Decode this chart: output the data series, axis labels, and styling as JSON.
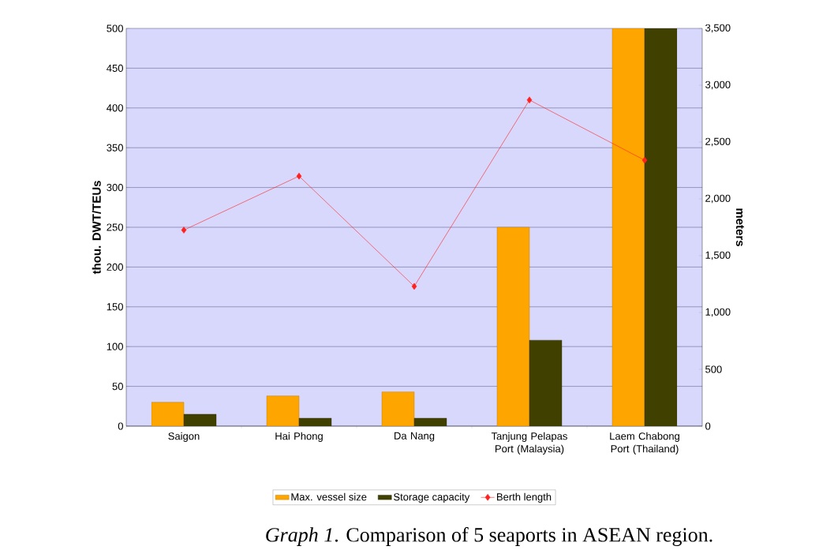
{
  "chart_data": {
    "type": "bar",
    "categories": [
      "Saigon",
      "Hai Phong",
      "Da Nang",
      "Tanjung Pelapas Port (Malaysia)",
      "Laem Chabong Port (Thailand)"
    ],
    "series": [
      {
        "name": "Max. vessel size",
        "color": "#ffa500",
        "values": [
          30,
          38,
          43,
          250,
          500
        ]
      },
      {
        "name": "Storage capacity",
        "color": "#404000",
        "values": [
          15,
          10,
          10,
          108,
          500
        ]
      },
      {
        "name": "Berth length",
        "type": "line",
        "axis": "y2",
        "marker": "diamond",
        "color": "#ff2020",
        "values": [
          1725,
          2200,
          1230,
          2870,
          2340
        ]
      }
    ],
    "ylim": [
      0,
      500
    ],
    "yticks": [
      0,
      50,
      100,
      150,
      200,
      250,
      300,
      350,
      400,
      450,
      500
    ],
    "y2lim": [
      0,
      3500
    ],
    "y2ticks": [
      0,
      500,
      {
        "value": 1000,
        "label": "1,000"
      },
      {
        "value": 1500,
        "label": "1,500"
      },
      {
        "value": 2000,
        "label": "2,000"
      },
      {
        "value": 2500,
        "label": "2,500"
      },
      {
        "value": 3000,
        "label": "3,000"
      },
      {
        "value": 3500,
        "label": "3,500"
      }
    ],
    "ylabel": "thou. DWT/TEUs",
    "y2label": "meters",
    "grid": "y",
    "legend": "bottom",
    "annotations": [
      "*Graph 1*. Comparison of 5 seaports in ASEAN region."
    ]
  }
}
